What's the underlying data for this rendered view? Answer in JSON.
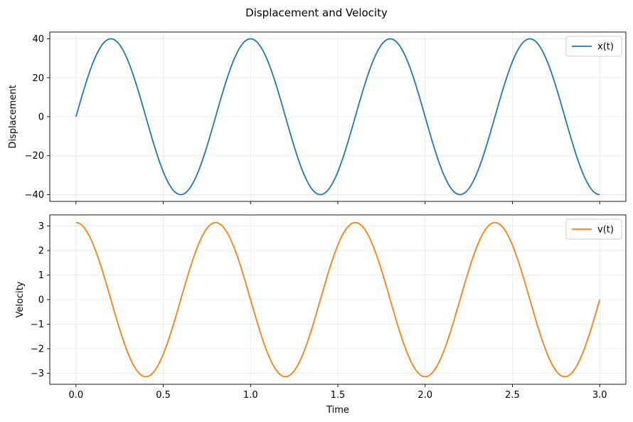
{
  "figure": {
    "title": "Displacement and Velocity"
  },
  "chart_data": [
    {
      "type": "line",
      "ylabel": "Displacement",
      "xlabel": "",
      "xlim": [
        -0.15,
        3.15
      ],
      "ylim": [
        -43.5,
        43.5
      ],
      "xticks": [
        0.0,
        0.5,
        1.0,
        1.5,
        2.0,
        2.5,
        3.0
      ],
      "xtick_labels_visible": false,
      "yticks": [
        -40,
        -20,
        0,
        20,
        40
      ],
      "ytick_labels": [
        "−40",
        "−20",
        "0",
        "20",
        "40"
      ],
      "grid": true,
      "legend_position": "top-right",
      "series": [
        {
          "name": "x(t)",
          "color": "#1f77b4",
          "function": "40*sin(2*pi*1.25*t)",
          "x": [
            0.0,
            0.1,
            0.2,
            0.3,
            0.4,
            0.5,
            0.6,
            0.7,
            0.8,
            0.9,
            1.0,
            1.1,
            1.2,
            1.3,
            1.4,
            1.5,
            1.6,
            1.7,
            1.8,
            1.9,
            2.0,
            2.1,
            2.2,
            2.3,
            2.4,
            2.5,
            2.6,
            2.7,
            2.8,
            2.9,
            3.0
          ],
          "y": [
            0,
            28.3,
            40,
            28.3,
            0,
            -28.3,
            -40,
            -28.3,
            0,
            28.3,
            40,
            28.3,
            0,
            -28.3,
            -40,
            -28.3,
            0,
            28.3,
            40,
            28.3,
            0,
            -28.3,
            -40,
            -28.3,
            0,
            28.3,
            40,
            28.3,
            0,
            -28.3,
            -40
          ]
        }
      ]
    },
    {
      "type": "line",
      "ylabel": "Velocity",
      "xlabel": "Time",
      "xlim": [
        -0.15,
        3.15
      ],
      "ylim": [
        -3.45,
        3.45
      ],
      "xticks": [
        0.0,
        0.5,
        1.0,
        1.5,
        2.0,
        2.5,
        3.0
      ],
      "xtick_labels": [
        "0.0",
        "0.5",
        "1.0",
        "1.5",
        "2.0",
        "2.5",
        "3.0"
      ],
      "yticks": [
        -3,
        -2,
        -1,
        0,
        1,
        2,
        3
      ],
      "ytick_labels": [
        "−3",
        "−2",
        "−1",
        "0",
        "1",
        "2",
        "3"
      ],
      "grid": true,
      "legend_position": "top-right",
      "series": [
        {
          "name": "v(t)",
          "color": "#ff7f0e",
          "function": "3.14*cos(2*pi*1.25*t)",
          "x": [
            0.0,
            0.1,
            0.2,
            0.3,
            0.4,
            0.5,
            0.6,
            0.7,
            0.8,
            0.9,
            1.0,
            1.1,
            1.2,
            1.3,
            1.4,
            1.5,
            1.6,
            1.7,
            1.8,
            1.9,
            2.0,
            2.1,
            2.2,
            2.3,
            2.4,
            2.5,
            2.6,
            2.7,
            2.8,
            2.9,
            3.0
          ],
          "y": [
            3.14,
            2.22,
            0,
            -2.22,
            -3.14,
            -2.22,
            0,
            2.22,
            3.14,
            2.22,
            0,
            -2.22,
            -3.14,
            -2.22,
            0,
            2.22,
            3.14,
            2.22,
            0,
            -2.22,
            -3.14,
            -2.22,
            0,
            2.22,
            3.14,
            2.22,
            0,
            -2.22,
            -3.14,
            -2.22,
            0
          ]
        }
      ]
    }
  ]
}
